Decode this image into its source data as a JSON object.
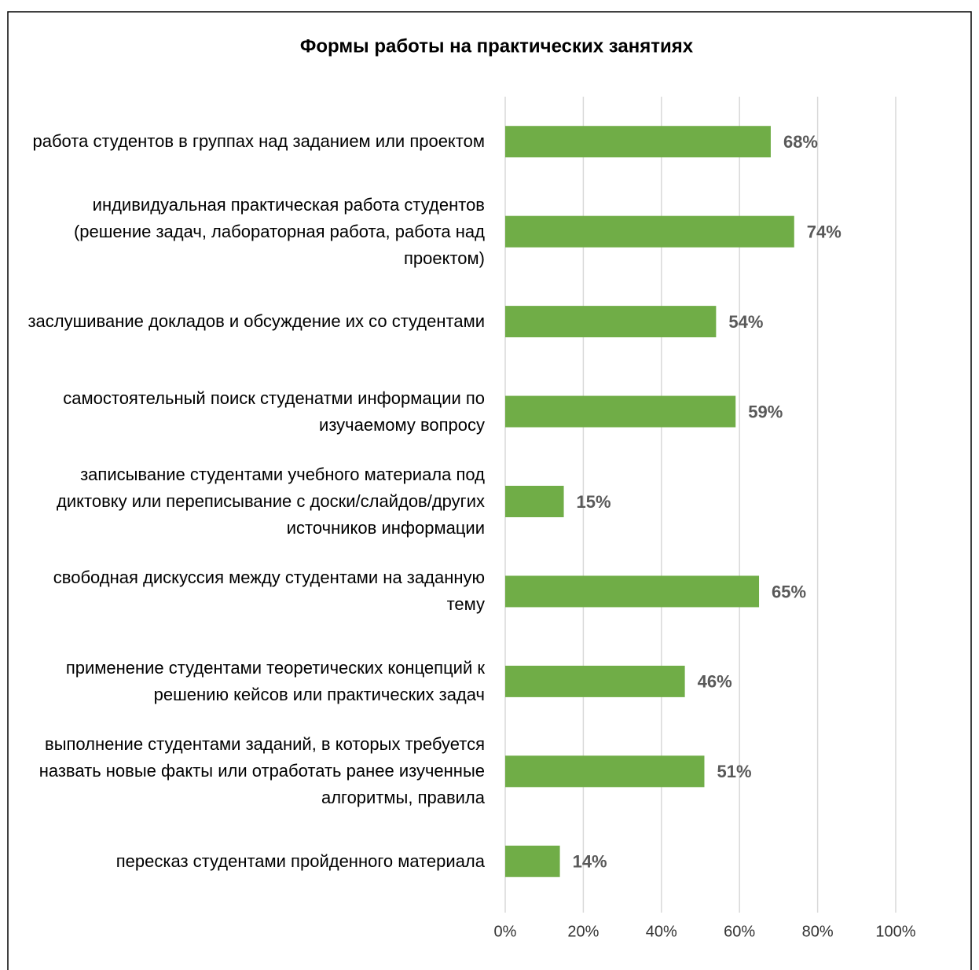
{
  "chart_data": {
    "type": "bar",
    "orientation": "horizontal",
    "title": "Формы работы на практических занятиях",
    "categories": [
      "работа студентов в группах над заданием или проектом",
      "индивидуальная практическая работа студентов (решение задач, лабораторная работа, работа над проектом)",
      "заслушивание докладов и обсуждение их со студентами",
      "самостоятельный поиск студенатми информации по изучаемому вопросу",
      "записывание студентами учебного материала под диктовку или переписывание с доски/слайдов/других источников информации",
      "свободная дискуссия между студентами на заданную тему",
      "применение студентами теоретических концепций к решению кейсов или практических задач",
      "выполнение студентами заданий, в которых требуется назвать новые факты или отработать ранее изученные алгоритмы, правила",
      "пересказ студентами пройденного материала"
    ],
    "values": [
      68,
      74,
      54,
      59,
      15,
      65,
      46,
      51,
      14
    ],
    "value_labels": [
      "68%",
      "74%",
      "54%",
      "59%",
      "15%",
      "65%",
      "46%",
      "51%",
      "14%"
    ],
    "color": "#70ad47",
    "xlim": [
      0,
      100
    ],
    "xticks": [
      {
        "value": 0,
        "label": "0%"
      },
      {
        "value": 20,
        "label": "20%"
      },
      {
        "value": 40,
        "label": "40%"
      },
      {
        "value": 60,
        "label": "60%"
      },
      {
        "value": 80,
        "label": "80%"
      },
      {
        "value": 100,
        "label": "100%"
      }
    ],
    "grid": true
  }
}
